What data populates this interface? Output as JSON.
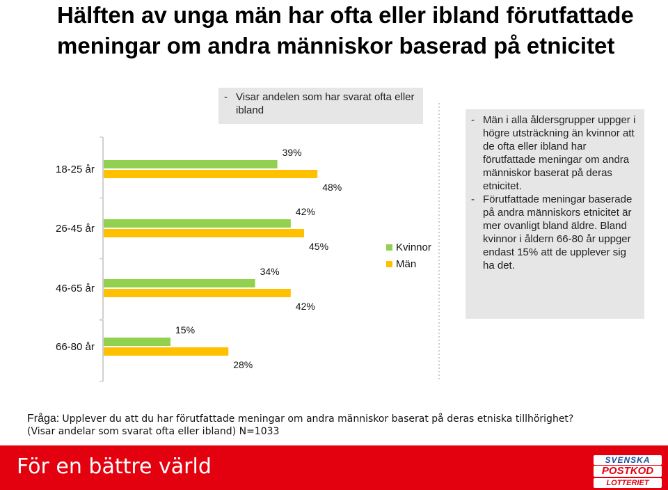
{
  "title": "Hälften av unga män har ofta eller ibland förutfattade meningar om andra människor baserad på etnicitet",
  "subtitle": [
    "-",
    "Visar andelen som har svarat ofta eller ibland"
  ],
  "notes": [
    {
      "dash": "-",
      "text": "Män i alla åldersgrupper uppger i högre utsträckning än kvinnor att de ofta eller ibland har förutfattade meningar om andra människor baserat på deras etnicitet."
    },
    {
      "dash": "-",
      "text": "Förutfattade meningar baserade på andra människors etnicitet är mer ovanligt bland äldre. Bland kvinnor i åldern 66-80 år uppger endast 15% att de upplever sig ha det."
    }
  ],
  "colors": {
    "kvinnor": "#92d050",
    "man": "#ffc000",
    "axis": "#d0d0d0",
    "dotted": "#bbbbbb",
    "brand": "#e3000f"
  },
  "chart_data": [
    {
      "type": "bar",
      "orientation": "horizontal",
      "categories": [
        "18-25 år",
        "26-45 år",
        "46-65 år"
      ],
      "series": [
        {
          "name": "Kvinnor",
          "values": [
            39,
            42,
            34
          ]
        },
        {
          "name": "Män",
          "values": [
            48,
            45,
            42
          ]
        }
      ],
      "value_labels": {
        "Kvinnor": [
          "39%",
          "42%",
          "34%"
        ],
        "Män": [
          "48%",
          "45%",
          "42%"
        ]
      },
      "xlim": [
        0,
        100
      ],
      "legend": "right",
      "grid": false
    },
    {
      "type": "bar",
      "orientation": "horizontal",
      "categories": [
        "66-80 år"
      ],
      "series": [
        {
          "name": "Kvinnor",
          "values": [
            15
          ]
        },
        {
          "name": "Män",
          "values": [
            28
          ]
        }
      ],
      "value_labels": {
        "Kvinnor": [
          "15%"
        ],
        "Män": [
          "28%"
        ]
      },
      "xlim": [
        0,
        100
      ],
      "grid": false
    }
  ],
  "footer": {
    "question_label": "Fråga:",
    "question": "Upplever du att du har förutfattade meningar om andra människor baserat på deras etniska tillhörighet?",
    "n_text": "(Visar andelar som svarat ofta eller ibland) N=1033"
  },
  "brand": {
    "tagline": "För en bättre värld",
    "logo_lines": [
      "SVENSKA",
      "POSTKOD",
      "LOTTERIET"
    ]
  }
}
